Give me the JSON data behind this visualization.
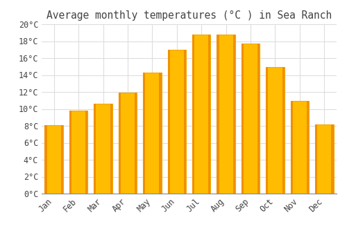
{
  "title": "Average monthly temperatures (°C ) in Sea Ranch",
  "months": [
    "Jan",
    "Feb",
    "Mar",
    "Apr",
    "May",
    "Jun",
    "Jul",
    "Aug",
    "Sep",
    "Oct",
    "Nov",
    "Dec"
  ],
  "values": [
    8.1,
    9.8,
    10.6,
    11.9,
    14.3,
    17.0,
    18.8,
    18.8,
    17.7,
    14.9,
    10.9,
    8.2
  ],
  "bar_color_main": "#FFBC00",
  "bar_color_edge": "#F5A800",
  "background_color": "#FFFFFF",
  "plot_bg_color": "#FFFFFF",
  "grid_color": "#DDDDDD",
  "text_color": "#444444",
  "ylim": [
    0,
    20
  ],
  "ytick_step": 2,
  "title_fontsize": 10.5,
  "tick_fontsize": 8.5,
  "font_family": "monospace",
  "bar_width": 0.75
}
